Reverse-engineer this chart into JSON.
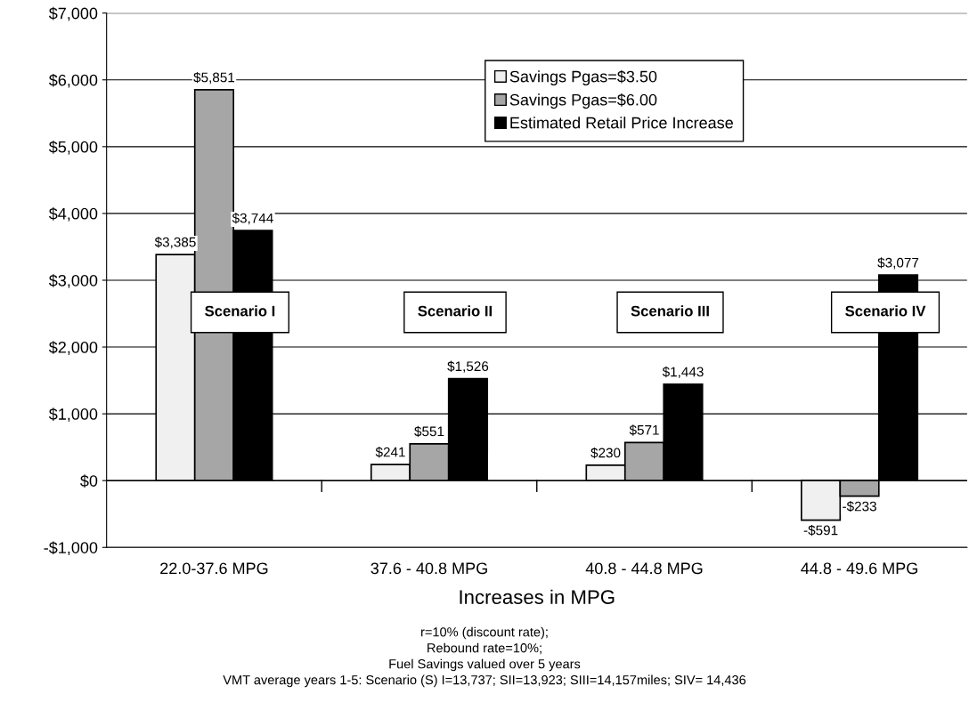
{
  "chart_data": {
    "type": "bar",
    "categories": [
      "22.0-37.6 MPG",
      "37.6 - 40.8 MPG",
      "40.8 - 44.8 MPG",
      "44.8 - 49.6 MPG"
    ],
    "series": [
      {
        "name": "Savings Pgas=$3.50",
        "color": "#f0f0f0",
        "values": [
          3385,
          241,
          230,
          -591
        ],
        "value_labels": [
          "$3,385",
          "$241",
          "$230",
          "-$591"
        ]
      },
      {
        "name": "Savings Pgas=$6.00",
        "color": "#a6a6a6",
        "values": [
          5851,
          551,
          571,
          -233
        ],
        "value_labels": [
          "$5,851",
          "$551",
          "$571",
          "-$233"
        ]
      },
      {
        "name": "Estimated Retail Price Increase",
        "color": "#000000",
        "values": [
          3744,
          1526,
          1443,
          3077
        ],
        "value_labels": [
          "$3,744",
          "$1,526",
          "$1,443",
          "$3,077"
        ]
      }
    ],
    "xlabel": "Increases in MPG",
    "ylim": [
      -1000,
      7000
    ],
    "yticks": [
      {
        "value": -1000,
        "label": "-$1,000"
      },
      {
        "value": 0,
        "label": "$0"
      },
      {
        "value": 1000,
        "label": "$1,000"
      },
      {
        "value": 2000,
        "label": "$2,000"
      },
      {
        "value": 3000,
        "label": "$3,000"
      },
      {
        "value": 4000,
        "label": "$4,000"
      },
      {
        "value": 5000,
        "label": "$5,000"
      },
      {
        "value": 6000,
        "label": "$6,000"
      },
      {
        "value": 7000,
        "label": "$7,000"
      }
    ],
    "grid": "y",
    "legend": "top right",
    "annotations": [
      "Scenario I",
      "Scenario II",
      "Scenario III",
      "Scenario IV",
      "r=10% (discount rate);",
      "Rebound rate=10%;",
      "Fuel Savings valued over 5 years",
      "VMT average years 1-5: Scenario (S) I=13,737; SII=13,923; SIII=14,157miles; SIV= 14,436"
    ]
  }
}
